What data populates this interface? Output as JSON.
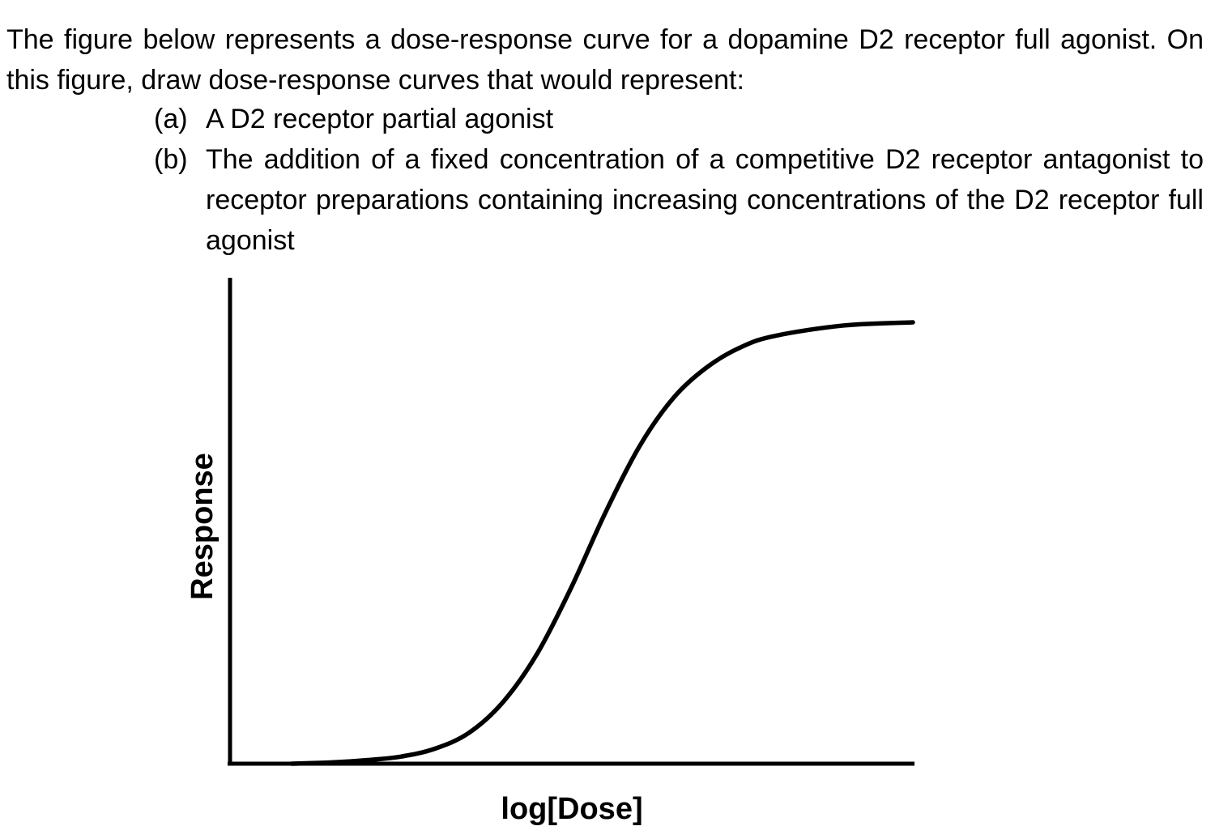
{
  "question": {
    "intro": "The figure below represents a dose-response curve for a dopamine D2 receptor full agonist. On this figure, draw dose-response curves that would represent:",
    "items": [
      {
        "marker": "(a)",
        "text": "A D2 receptor partial agonist"
      },
      {
        "marker": "(b)",
        "text": "The addition of a fixed concentration of a competitive D2 receptor antagonist to receptor preparations containing increasing concentrations of the D2 receptor full agonist"
      }
    ]
  },
  "chart_data": {
    "type": "line",
    "title": "",
    "xlabel": "log[Dose]",
    "ylabel": "Response",
    "xlim": [
      0,
      10
    ],
    "ylim": [
      0,
      100
    ],
    "grid": false,
    "ticks_shown": false,
    "series": [
      {
        "points": [
          [
            0.9,
            0.0
          ],
          [
            1.5,
            0.3
          ],
          [
            2.0,
            0.8
          ],
          [
            2.5,
            1.6
          ],
          [
            3.0,
            3.4
          ],
          [
            3.5,
            7.0
          ],
          [
            4.0,
            14.0
          ],
          [
            4.5,
            25.0
          ],
          [
            5.0,
            40.0
          ],
          [
            5.5,
            57.0
          ],
          [
            6.0,
            72.0
          ],
          [
            6.5,
            83.0
          ],
          [
            7.0,
            90.0
          ],
          [
            7.5,
            94.5
          ],
          [
            8.0,
            97.0
          ],
          [
            9.0,
            99.3
          ],
          [
            10.0,
            100.0
          ]
        ],
        "color": "#000000"
      }
    ]
  }
}
